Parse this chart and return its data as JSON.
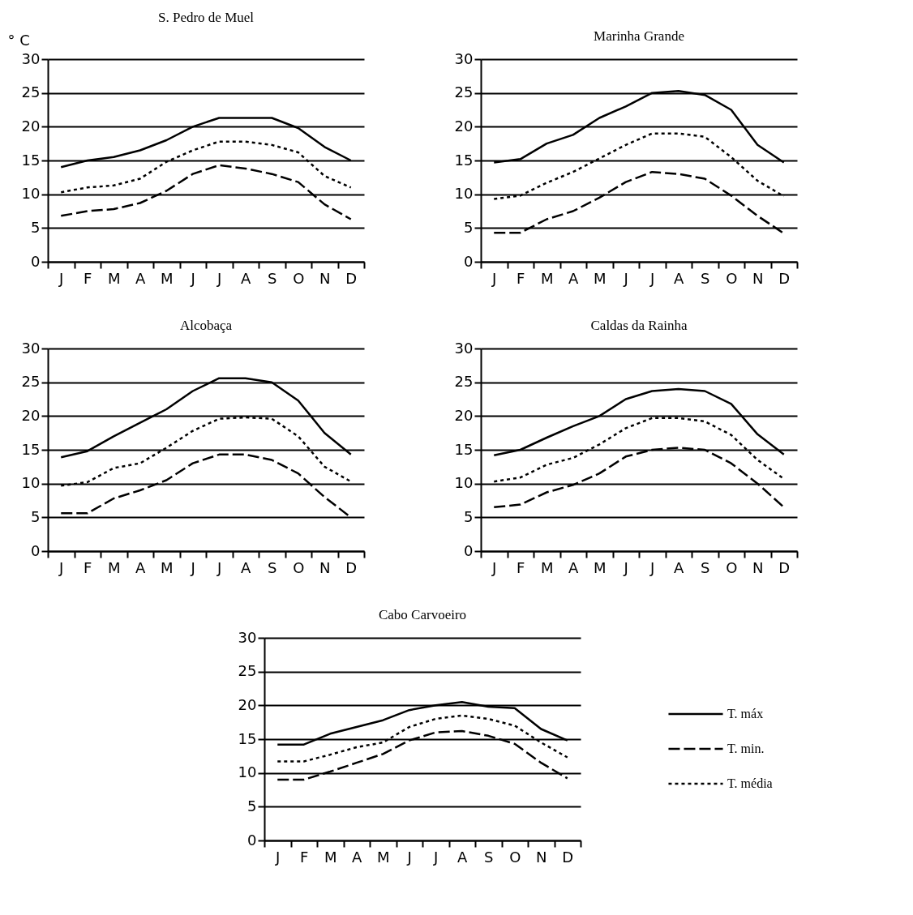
{
  "chart_data": [
    {
      "type": "line",
      "title": "S. Pedro de Muel",
      "ylabel": "° C",
      "categories": [
        "J",
        "F",
        "M",
        "A",
        "M",
        "J",
        "J",
        "A",
        "S",
        "O",
        "N",
        "D"
      ],
      "ylim": [
        0,
        30
      ],
      "yticks": [
        0,
        5,
        10,
        15,
        20,
        25,
        30
      ],
      "grid": "y",
      "series": [
        {
          "color": "#000000",
          "line_style": "solid",
          "values": [
            14,
            15,
            15.5,
            16.5,
            18,
            20,
            21.3,
            21.3,
            21.3,
            19.8,
            17,
            15
          ]
        },
        {
          "color": "#000000",
          "line_style": "dashed",
          "values": [
            6.8,
            7.5,
            7.8,
            8.7,
            10.5,
            13,
            14.3,
            13.8,
            13,
            11.8,
            8.5,
            6.3
          ]
        },
        {
          "color": "#000000",
          "line_style": "dotted",
          "values": [
            10.3,
            11,
            11.3,
            12.3,
            14.8,
            16.5,
            17.8,
            17.8,
            17.3,
            16.2,
            12.7,
            11
          ]
        }
      ]
    },
    {
      "type": "line",
      "title": "Marinha Grande",
      "categories": [
        "J",
        "F",
        "M",
        "A",
        "M",
        "J",
        "J",
        "A",
        "S",
        "O",
        "N",
        "D"
      ],
      "ylim": [
        0,
        30
      ],
      "yticks": [
        0,
        5,
        10,
        15,
        20,
        25,
        30
      ],
      "grid": "y",
      "series": [
        {
          "color": "#000000",
          "line_style": "solid",
          "values": [
            14.7,
            15.2,
            17.5,
            18.8,
            21.3,
            23,
            25,
            25.3,
            24.7,
            22.5,
            17.3,
            14.7
          ]
        },
        {
          "color": "#000000",
          "line_style": "dashed",
          "values": [
            4.3,
            4.3,
            6.3,
            7.5,
            9.5,
            11.8,
            13.3,
            13,
            12.3,
            9.8,
            6.8,
            4.2
          ]
        },
        {
          "color": "#000000",
          "line_style": "dotted",
          "values": [
            9.3,
            9.8,
            11.7,
            13.3,
            15.3,
            17.3,
            19,
            19,
            18.5,
            15.5,
            12,
            9.7
          ]
        }
      ]
    },
    {
      "type": "line",
      "title": "Alcobaça",
      "categories": [
        "J",
        "F",
        "M",
        "A",
        "M",
        "J",
        "J",
        "A",
        "S",
        "O",
        "N",
        "D"
      ],
      "ylim": [
        0,
        30
      ],
      "yticks": [
        0,
        5,
        10,
        15,
        20,
        25,
        30
      ],
      "grid": "y",
      "series": [
        {
          "color": "#000000",
          "line_style": "solid",
          "values": [
            13.9,
            14.8,
            17,
            19,
            21,
            23.7,
            25.6,
            25.6,
            25,
            22.3,
            17.5,
            14.3
          ]
        },
        {
          "color": "#000000",
          "line_style": "dashed",
          "values": [
            5.6,
            5.6,
            7.8,
            9,
            10.5,
            13,
            14.3,
            14.3,
            13.5,
            11.5,
            8,
            5
          ]
        },
        {
          "color": "#000000",
          "line_style": "dotted",
          "values": [
            9.7,
            10.2,
            12.3,
            13,
            15.3,
            17.8,
            19.6,
            19.8,
            19.6,
            17,
            12.5,
            10.3
          ]
        }
      ]
    },
    {
      "type": "line",
      "title": "Caldas da Rainha",
      "categories": [
        "J",
        "F",
        "M",
        "A",
        "M",
        "J",
        "J",
        "A",
        "S",
        "O",
        "N",
        "D"
      ],
      "ylim": [
        0,
        30
      ],
      "yticks": [
        0,
        5,
        10,
        15,
        20,
        25,
        30
      ],
      "grid": "y",
      "series": [
        {
          "color": "#000000",
          "line_style": "solid",
          "values": [
            14.2,
            15,
            16.8,
            18.5,
            20,
            22.5,
            23.7,
            24,
            23.7,
            21.8,
            17.3,
            14.3
          ]
        },
        {
          "color": "#000000",
          "line_style": "dashed",
          "values": [
            6.5,
            6.9,
            8.7,
            9.8,
            11.5,
            14,
            15,
            15.3,
            15,
            13,
            10,
            6.5
          ]
        },
        {
          "color": "#000000",
          "line_style": "dotted",
          "values": [
            10.3,
            10.9,
            12.8,
            13.8,
            15.8,
            18.2,
            19.7,
            19.7,
            19.2,
            17.2,
            13.5,
            10.7
          ]
        }
      ]
    },
    {
      "type": "line",
      "title": "Cabo Carvoeiro",
      "categories": [
        "J",
        "F",
        "M",
        "A",
        "M",
        "J",
        "J",
        "A",
        "S",
        "O",
        "N",
        "D"
      ],
      "ylim": [
        0,
        30
      ],
      "yticks": [
        0,
        5,
        10,
        15,
        20,
        25,
        30
      ],
      "grid": "y",
      "legend": "right",
      "series": [
        {
          "name": "T. máx",
          "color": "#000000",
          "line_style": "solid",
          "values": [
            14.2,
            14.2,
            15.8,
            16.8,
            17.8,
            19.3,
            20,
            20.5,
            19.8,
            19.6,
            16.5,
            14.8
          ]
        },
        {
          "name": "T. min.",
          "color": "#000000",
          "line_style": "dashed",
          "values": [
            9,
            9,
            10.2,
            11.5,
            12.8,
            14.8,
            16,
            16.2,
            15.5,
            14.3,
            11.5,
            9.2
          ]
        },
        {
          "name": "T. média",
          "color": "#000000",
          "line_style": "dotted",
          "values": [
            11.7,
            11.7,
            12.7,
            13.8,
            14.5,
            16.8,
            18,
            18.5,
            18,
            17,
            14.5,
            12.3
          ]
        }
      ]
    }
  ]
}
